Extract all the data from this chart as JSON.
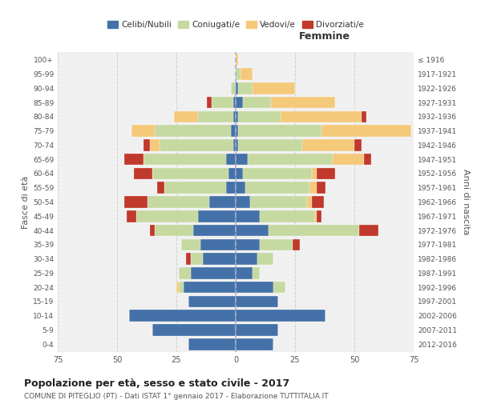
{
  "age_groups": [
    "0-4",
    "5-9",
    "10-14",
    "15-19",
    "20-24",
    "25-29",
    "30-34",
    "35-39",
    "40-44",
    "45-49",
    "50-54",
    "55-59",
    "60-64",
    "65-69",
    "70-74",
    "75-79",
    "80-84",
    "85-89",
    "90-94",
    "95-99",
    "100+"
  ],
  "birth_years": [
    "2012-2016",
    "2007-2011",
    "2002-2006",
    "1997-2001",
    "1992-1996",
    "1987-1991",
    "1982-1986",
    "1977-1981",
    "1972-1976",
    "1967-1971",
    "1962-1966",
    "1957-1961",
    "1952-1956",
    "1947-1951",
    "1942-1946",
    "1937-1941",
    "1932-1936",
    "1927-1931",
    "1922-1926",
    "1917-1921",
    "≤ 1916"
  ],
  "male": {
    "celibi": [
      20,
      35,
      45,
      20,
      22,
      19,
      14,
      15,
      18,
      16,
      11,
      4,
      3,
      4,
      1,
      2,
      1,
      1,
      0,
      0,
      0
    ],
    "coniugati": [
      0,
      0,
      0,
      0,
      2,
      5,
      5,
      8,
      16,
      26,
      26,
      26,
      32,
      35,
      31,
      32,
      15,
      9,
      2,
      0,
      0
    ],
    "vedovi": [
      0,
      0,
      0,
      0,
      1,
      0,
      0,
      0,
      0,
      0,
      0,
      0,
      0,
      0,
      4,
      10,
      10,
      0,
      0,
      0,
      0
    ],
    "divorziati": [
      0,
      0,
      0,
      0,
      0,
      0,
      2,
      0,
      2,
      4,
      10,
      3,
      8,
      8,
      3,
      0,
      0,
      2,
      0,
      0,
      0
    ]
  },
  "female": {
    "nubili": [
      16,
      18,
      38,
      18,
      16,
      7,
      9,
      10,
      14,
      10,
      6,
      4,
      3,
      5,
      1,
      1,
      1,
      3,
      1,
      0,
      0
    ],
    "coniugate": [
      0,
      0,
      0,
      0,
      5,
      3,
      7,
      14,
      38,
      23,
      24,
      27,
      29,
      36,
      27,
      35,
      18,
      12,
      6,
      2,
      0
    ],
    "vedove": [
      0,
      0,
      0,
      0,
      0,
      0,
      0,
      0,
      0,
      1,
      2,
      3,
      2,
      13,
      22,
      38,
      34,
      27,
      18,
      5,
      1
    ],
    "divorziate": [
      0,
      0,
      0,
      0,
      0,
      0,
      0,
      3,
      8,
      2,
      5,
      4,
      8,
      3,
      3,
      0,
      2,
      0,
      0,
      0,
      0
    ]
  },
  "color_celibi": "#4472a8",
  "color_coniugati": "#c5d9a0",
  "color_vedovi": "#f5c97a",
  "color_divorziati": "#c0392b",
  "title": "Popolazione per età, sesso e stato civile - 2017",
  "subtitle": "COMUNE DI PITEGLIO (PT) - Dati ISTAT 1° gennaio 2017 - Elaborazione TUTTITALIA.IT",
  "xlabel_right": "Femmine",
  "ylabel_left": "Fasce di età",
  "ylabel_right": "Anni di nascita",
  "xlim": 75,
  "legend_labels": [
    "Celibi/Nubili",
    "Coniugati/e",
    "Vedovi/e",
    "Divorziati/e"
  ],
  "background_color": "#ffffff",
  "plot_bg_color": "#f0f0f0",
  "grid_color": "#cccccc"
}
